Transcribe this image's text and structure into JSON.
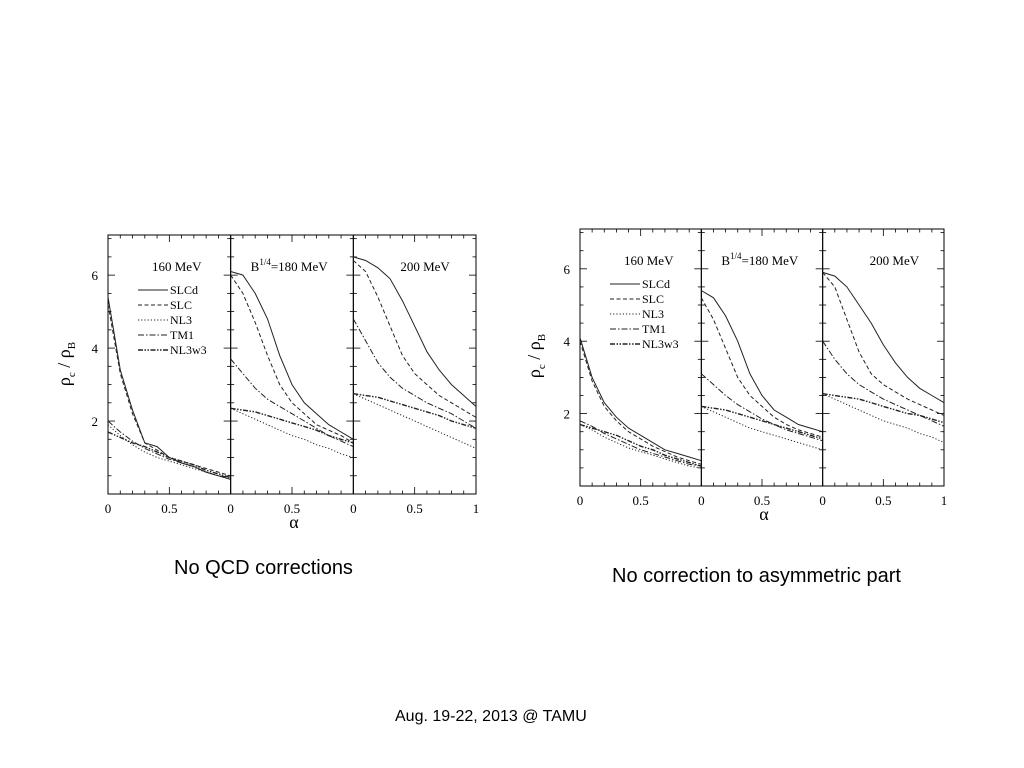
{
  "slide": {
    "caption_left": "No QCD corrections",
    "caption_right": "No correction to asymmetric part",
    "footer": "Aug. 19-22, 2013 @ TAMU"
  },
  "legend": [
    {
      "name": "SLCd",
      "dash": "solid"
    },
    {
      "name": "SLC",
      "dash": "dashed"
    },
    {
      "name": "NL3",
      "dash": "dotted"
    },
    {
      "name": "TM1",
      "dash": "dashdot"
    },
    {
      "name": "NL3w3",
      "dash": "dashdotdot"
    }
  ],
  "chart_data": [
    {
      "type": "line",
      "title": "No QCD corrections",
      "xlabel": "α",
      "ylabel": "ρc / ρB",
      "ylim": [
        0,
        7.1
      ],
      "xlim": [
        0,
        1
      ],
      "x_ticks": [
        0,
        0.5,
        1
      ],
      "y_ticks": [
        2,
        4,
        6
      ],
      "legend_placement": "top-right of first panel",
      "panels": [
        {
          "label": "160 MeV",
          "x": [
            0,
            0.1,
            0.2,
            0.3,
            0.4,
            0.5,
            0.6,
            0.7,
            0.8,
            0.9,
            1.0
          ],
          "series": [
            {
              "name": "SLCd",
              "values": [
                5.4,
                3.4,
                2.3,
                1.4,
                1.3,
                1.0,
                0.85,
                0.75,
                0.6,
                0.5,
                0.4
              ]
            },
            {
              "name": "SLC",
              "values": [
                5.2,
                3.3,
                2.2,
                1.4,
                1.2,
                1.0,
                0.9,
                0.8,
                0.7,
                0.6,
                0.5
              ]
            },
            {
              "name": "NL3",
              "values": [
                1.9,
                1.6,
                1.35,
                1.15,
                1.0,
                0.9,
                0.8,
                0.7,
                0.6,
                0.5,
                0.4
              ]
            },
            {
              "name": "TM1",
              "values": [
                2.0,
                1.7,
                1.45,
                1.25,
                1.1,
                0.95,
                0.85,
                0.75,
                0.6,
                0.5,
                0.45
              ]
            },
            {
              "name": "NL3w3",
              "values": [
                1.7,
                1.55,
                1.4,
                1.3,
                1.15,
                1.0,
                0.9,
                0.8,
                0.65,
                0.55,
                0.45
              ]
            }
          ]
        },
        {
          "label": "B^1/4=180 MeV",
          "x": [
            0,
            0.1,
            0.2,
            0.3,
            0.4,
            0.5,
            0.6,
            0.7,
            0.8,
            0.9,
            1.0
          ],
          "series": [
            {
              "name": "SLCd",
              "values": [
                6.1,
                6.0,
                5.5,
                4.8,
                3.8,
                3.0,
                2.5,
                2.2,
                1.9,
                1.7,
                1.5
              ]
            },
            {
              "name": "SLC",
              "values": [
                6.0,
                5.5,
                4.7,
                3.8,
                3.0,
                2.5,
                2.2,
                1.9,
                1.75,
                1.6,
                1.4
              ]
            },
            {
              "name": "NL3",
              "values": [
                2.35,
                2.2,
                2.05,
                1.9,
                1.75,
                1.6,
                1.5,
                1.35,
                1.25,
                1.1,
                1.0
              ]
            },
            {
              "name": "TM1",
              "values": [
                3.7,
                3.3,
                2.9,
                2.6,
                2.4,
                2.2,
                2.0,
                1.8,
                1.6,
                1.45,
                1.3
              ]
            },
            {
              "name": "NL3w3",
              "values": [
                2.35,
                2.3,
                2.25,
                2.15,
                2.05,
                1.95,
                1.85,
                1.75,
                1.6,
                1.5,
                1.4
              ]
            }
          ]
        },
        {
          "label": "200 MeV",
          "x": [
            0,
            0.1,
            0.2,
            0.3,
            0.4,
            0.5,
            0.6,
            0.7,
            0.8,
            0.9,
            1.0
          ],
          "series": [
            {
              "name": "SLCd",
              "values": [
                6.5,
                6.4,
                6.2,
                5.9,
                5.3,
                4.6,
                3.9,
                3.4,
                3.0,
                2.7,
                2.4
              ]
            },
            {
              "name": "SLC",
              "values": [
                6.4,
                6.1,
                5.4,
                4.6,
                3.8,
                3.3,
                3.0,
                2.7,
                2.5,
                2.3,
                2.1
              ]
            },
            {
              "name": "NL3",
              "values": [
                2.75,
                2.6,
                2.45,
                2.3,
                2.15,
                2.0,
                1.85,
                1.7,
                1.55,
                1.4,
                1.25
              ]
            },
            {
              "name": "TM1",
              "values": [
                4.8,
                4.2,
                3.6,
                3.2,
                2.9,
                2.7,
                2.5,
                2.35,
                2.2,
                2.0,
                1.8
              ]
            },
            {
              "name": "NL3w3",
              "values": [
                2.75,
                2.7,
                2.65,
                2.55,
                2.45,
                2.35,
                2.25,
                2.15,
                2.0,
                1.9,
                1.8
              ]
            }
          ]
        }
      ]
    },
    {
      "type": "line",
      "title": "No correction to asymmetric part",
      "xlabel": "α",
      "ylabel": "ρc / ρB",
      "ylim": [
        0,
        7.1
      ],
      "xlim": [
        0,
        1
      ],
      "x_ticks": [
        0,
        0.5,
        1
      ],
      "y_ticks": [
        2,
        4,
        6
      ],
      "legend_placement": "top-right of first panel",
      "panels": [
        {
          "label": "160 MeV",
          "x": [
            0,
            0.1,
            0.2,
            0.3,
            0.4,
            0.5,
            0.6,
            0.7,
            0.8,
            0.9,
            1.0
          ],
          "series": [
            {
              "name": "SLCd",
              "values": [
                4.1,
                3.0,
                2.3,
                1.9,
                1.6,
                1.4,
                1.2,
                1.0,
                0.9,
                0.8,
                0.7
              ]
            },
            {
              "name": "SLC",
              "values": [
                4.0,
                2.9,
                2.2,
                1.8,
                1.5,
                1.3,
                1.1,
                0.95,
                0.8,
                0.7,
                0.6
              ]
            },
            {
              "name": "NL3",
              "values": [
                1.7,
                1.55,
                1.35,
                1.2,
                1.05,
                0.95,
                0.85,
                0.75,
                0.65,
                0.55,
                0.5
              ]
            },
            {
              "name": "TM1",
              "values": [
                1.8,
                1.65,
                1.45,
                1.3,
                1.15,
                1.0,
                0.9,
                0.8,
                0.7,
                0.6,
                0.55
              ]
            },
            {
              "name": "NL3w3",
              "values": [
                1.7,
                1.6,
                1.5,
                1.4,
                1.25,
                1.1,
                1.0,
                0.85,
                0.75,
                0.65,
                0.55
              ]
            }
          ]
        },
        {
          "label": "B^1/4=180 MeV",
          "x": [
            0,
            0.1,
            0.2,
            0.3,
            0.4,
            0.5,
            0.6,
            0.7,
            0.8,
            0.9,
            1.0
          ],
          "series": [
            {
              "name": "SLCd",
              "values": [
                5.4,
                5.2,
                4.7,
                4.0,
                3.1,
                2.5,
                2.1,
                1.9,
                1.7,
                1.6,
                1.5
              ]
            },
            {
              "name": "SLC",
              "values": [
                5.2,
                4.6,
                3.8,
                3.0,
                2.5,
                2.2,
                1.9,
                1.7,
                1.55,
                1.45,
                1.35
              ]
            },
            {
              "name": "NL3",
              "values": [
                2.2,
                2.05,
                1.9,
                1.75,
                1.6,
                1.5,
                1.4,
                1.3,
                1.2,
                1.1,
                1.0
              ]
            },
            {
              "name": "TM1",
              "values": [
                3.1,
                2.8,
                2.5,
                2.25,
                2.05,
                1.85,
                1.7,
                1.55,
                1.45,
                1.35,
                1.25
              ]
            },
            {
              "name": "NL3w3",
              "values": [
                2.2,
                2.15,
                2.1,
                2.0,
                1.9,
                1.8,
                1.7,
                1.6,
                1.5,
                1.4,
                1.3
              ]
            }
          ]
        },
        {
          "label": "200 MeV",
          "x": [
            0,
            0.1,
            0.2,
            0.3,
            0.4,
            0.5,
            0.6,
            0.7,
            0.8,
            0.9,
            1.0
          ],
          "series": [
            {
              "name": "SLCd",
              "values": [
                5.9,
                5.8,
                5.5,
                5.0,
                4.5,
                3.9,
                3.4,
                3.0,
                2.7,
                2.5,
                2.3
              ]
            },
            {
              "name": "SLC",
              "values": [
                5.9,
                5.5,
                4.6,
                3.7,
                3.1,
                2.8,
                2.6,
                2.4,
                2.25,
                2.1,
                1.95
              ]
            },
            {
              "name": "NL3",
              "values": [
                2.55,
                2.4,
                2.25,
                2.1,
                1.95,
                1.8,
                1.7,
                1.6,
                1.45,
                1.35,
                1.2
              ]
            },
            {
              "name": "TM1",
              "values": [
                4.0,
                3.5,
                3.1,
                2.8,
                2.6,
                2.4,
                2.25,
                2.1,
                1.95,
                1.8,
                1.65
              ]
            },
            {
              "name": "NL3w3",
              "values": [
                2.55,
                2.5,
                2.45,
                2.4,
                2.3,
                2.2,
                2.1,
                2.0,
                1.95,
                1.85,
                1.75
              ]
            }
          ]
        }
      ]
    }
  ]
}
